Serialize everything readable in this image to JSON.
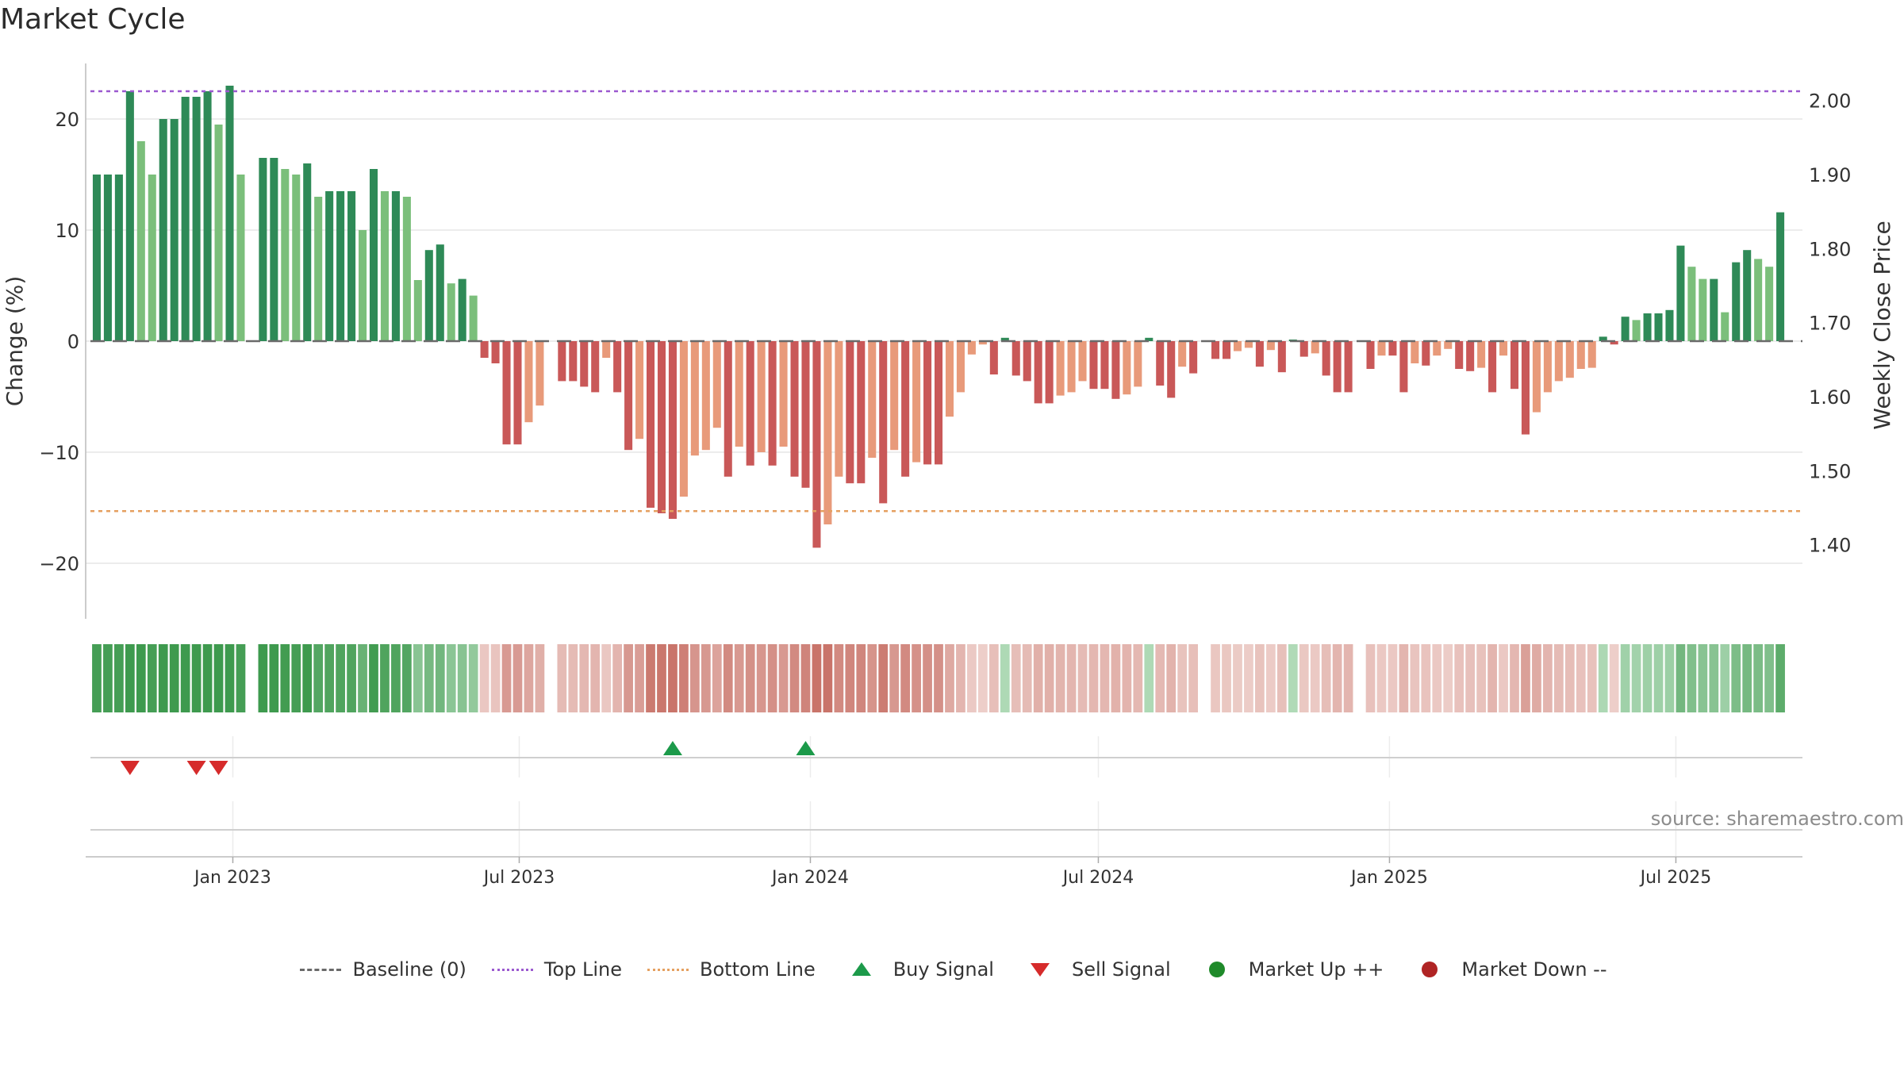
{
  "chart_data": {
    "type": "bar",
    "title": "Market Cycle",
    "ylabel_left": "Change (%)",
    "ylabel_right": "Weekly Close Price",
    "ylim_left": [
      -25,
      25
    ],
    "ylim_right": [
      1.3,
      2.05
    ],
    "yticks_left": [
      {
        "v": 20,
        "label": "20"
      },
      {
        "v": 10,
        "label": "10"
      },
      {
        "v": 0,
        "label": "0"
      },
      {
        "v": -10,
        "label": "−10"
      },
      {
        "v": -20,
        "label": "−20"
      }
    ],
    "yticks_right": [
      {
        "v": 2.0,
        "label": "2.00"
      },
      {
        "v": 1.9,
        "label": "1.90"
      },
      {
        "v": 1.8,
        "label": "1.80"
      },
      {
        "v": 1.7,
        "label": "1.70"
      },
      {
        "v": 1.6,
        "label": "1.60"
      },
      {
        "v": 1.5,
        "label": "1.50"
      },
      {
        "v": 1.4,
        "label": "1.40"
      }
    ],
    "x_start": "2022-09-30",
    "x_end": "2025-09-19",
    "xticks": [
      {
        "date": "2023-01-01",
        "label": "Jan 2023"
      },
      {
        "date": "2023-07-01",
        "label": "Jul 2023"
      },
      {
        "date": "2024-01-01",
        "label": "Jan 2024"
      },
      {
        "date": "2024-07-01",
        "label": "Jul 2024"
      },
      {
        "date": "2025-01-01",
        "label": "Jan 2025"
      },
      {
        "date": "2025-07-01",
        "label": "Jul 2025"
      }
    ],
    "first_week": "2022-10-07",
    "weekly_change": [
      15,
      15,
      15,
      22.5,
      18,
      15,
      20,
      20,
      22,
      22,
      22.5,
      19.5,
      23,
      15,
      null,
      16.5,
      16.5,
      15.5,
      15,
      16,
      13,
      13.5,
      13.5,
      13.5,
      10,
      15.5,
      13.5,
      13.5,
      13,
      5.5,
      8.2,
      8.7,
      5.2,
      5.6,
      4.1,
      -1.5,
      -2,
      -9.3,
      -9.3,
      -7.3,
      -5.8,
      null,
      -3.6,
      -3.6,
      -4.1,
      -4.6,
      -1.5,
      -4.6,
      -9.8,
      -8.8,
      -15,
      -15.5,
      -16,
      -14,
      -10.3,
      -9.8,
      -7.8,
      -12.2,
      -9.5,
      -11.2,
      -10,
      -11.2,
      -9.5,
      -12.2,
      -13.2,
      -18.6,
      -16.5,
      -12.2,
      -12.8,
      -12.8,
      -10.5,
      -14.6,
      -9.8,
      -12.2,
      -10.9,
      -11.1,
      -11.1,
      -6.8,
      -4.6,
      -1.2,
      -0.3,
      -3,
      0.3,
      -3.1,
      -3.6,
      -5.6,
      -5.6,
      -4.9,
      -4.6,
      -3.6,
      -4.3,
      -4.3,
      -5.2,
      -4.8,
      -4.1,
      0.3,
      -4,
      -5.1,
      -2.3,
      -2.9,
      null,
      -1.6,
      -1.6,
      -0.9,
      -0.6,
      -2.3,
      -0.8,
      -2.8,
      0,
      -1.4,
      -1.1,
      -3.1,
      -4.6,
      -4.6,
      null,
      -2.5,
      -1.3,
      -1.3,
      -4.6,
      -2,
      -2.2,
      -1.3,
      -0.7,
      -2.5,
      -2.7,
      -2.4,
      -4.6,
      -1.3,
      -4.3,
      -8.4,
      -6.4,
      -4.6,
      -3.6,
      -3.3,
      -2.5,
      -2.4,
      0.4,
      -0.3,
      2.2,
      1.9,
      2.5,
      2.5,
      2.8,
      8.6,
      6.7,
      5.6,
      5.6,
      2.6,
      7.1,
      8.2,
      7.4,
      6.7,
      11.6
    ],
    "top_line": 22.5,
    "bottom_line": -15.3,
    "buy_signals": [
      "2023-10-06",
      "2023-12-29"
    ],
    "sell_signals": [
      "2022-10-28",
      "2022-12-09",
      "2022-12-23"
    ],
    "legend": [
      {
        "label": "Baseline (0)",
        "kind": "dashed-line",
        "color": "#6a6a6a"
      },
      {
        "label": "Top Line",
        "kind": "dotted-line",
        "color": "#9b59d0"
      },
      {
        "label": "Bottom Line",
        "kind": "dotted-line",
        "color": "#e5a060"
      },
      {
        "label": "Buy Signal",
        "kind": "triangle-up",
        "color": "#1c9a4a"
      },
      {
        "label": "Sell Signal",
        "kind": "triangle-down",
        "color": "#d62b2b"
      },
      {
        "label": "Market Up ++",
        "kind": "dot",
        "color": "#1f8a2a"
      },
      {
        "label": "Market Down --",
        "kind": "dot",
        "color": "#b02424"
      }
    ],
    "colors": {
      "up_strong": "#2e8a57",
      "up_light": "#7bbf7b",
      "down_strong": "#c95858",
      "down_light": "#e89a7a",
      "grid": "#e6e6e6",
      "baseline": "#6a6a6a"
    }
  },
  "source_text": "source: sharemaestro.com"
}
